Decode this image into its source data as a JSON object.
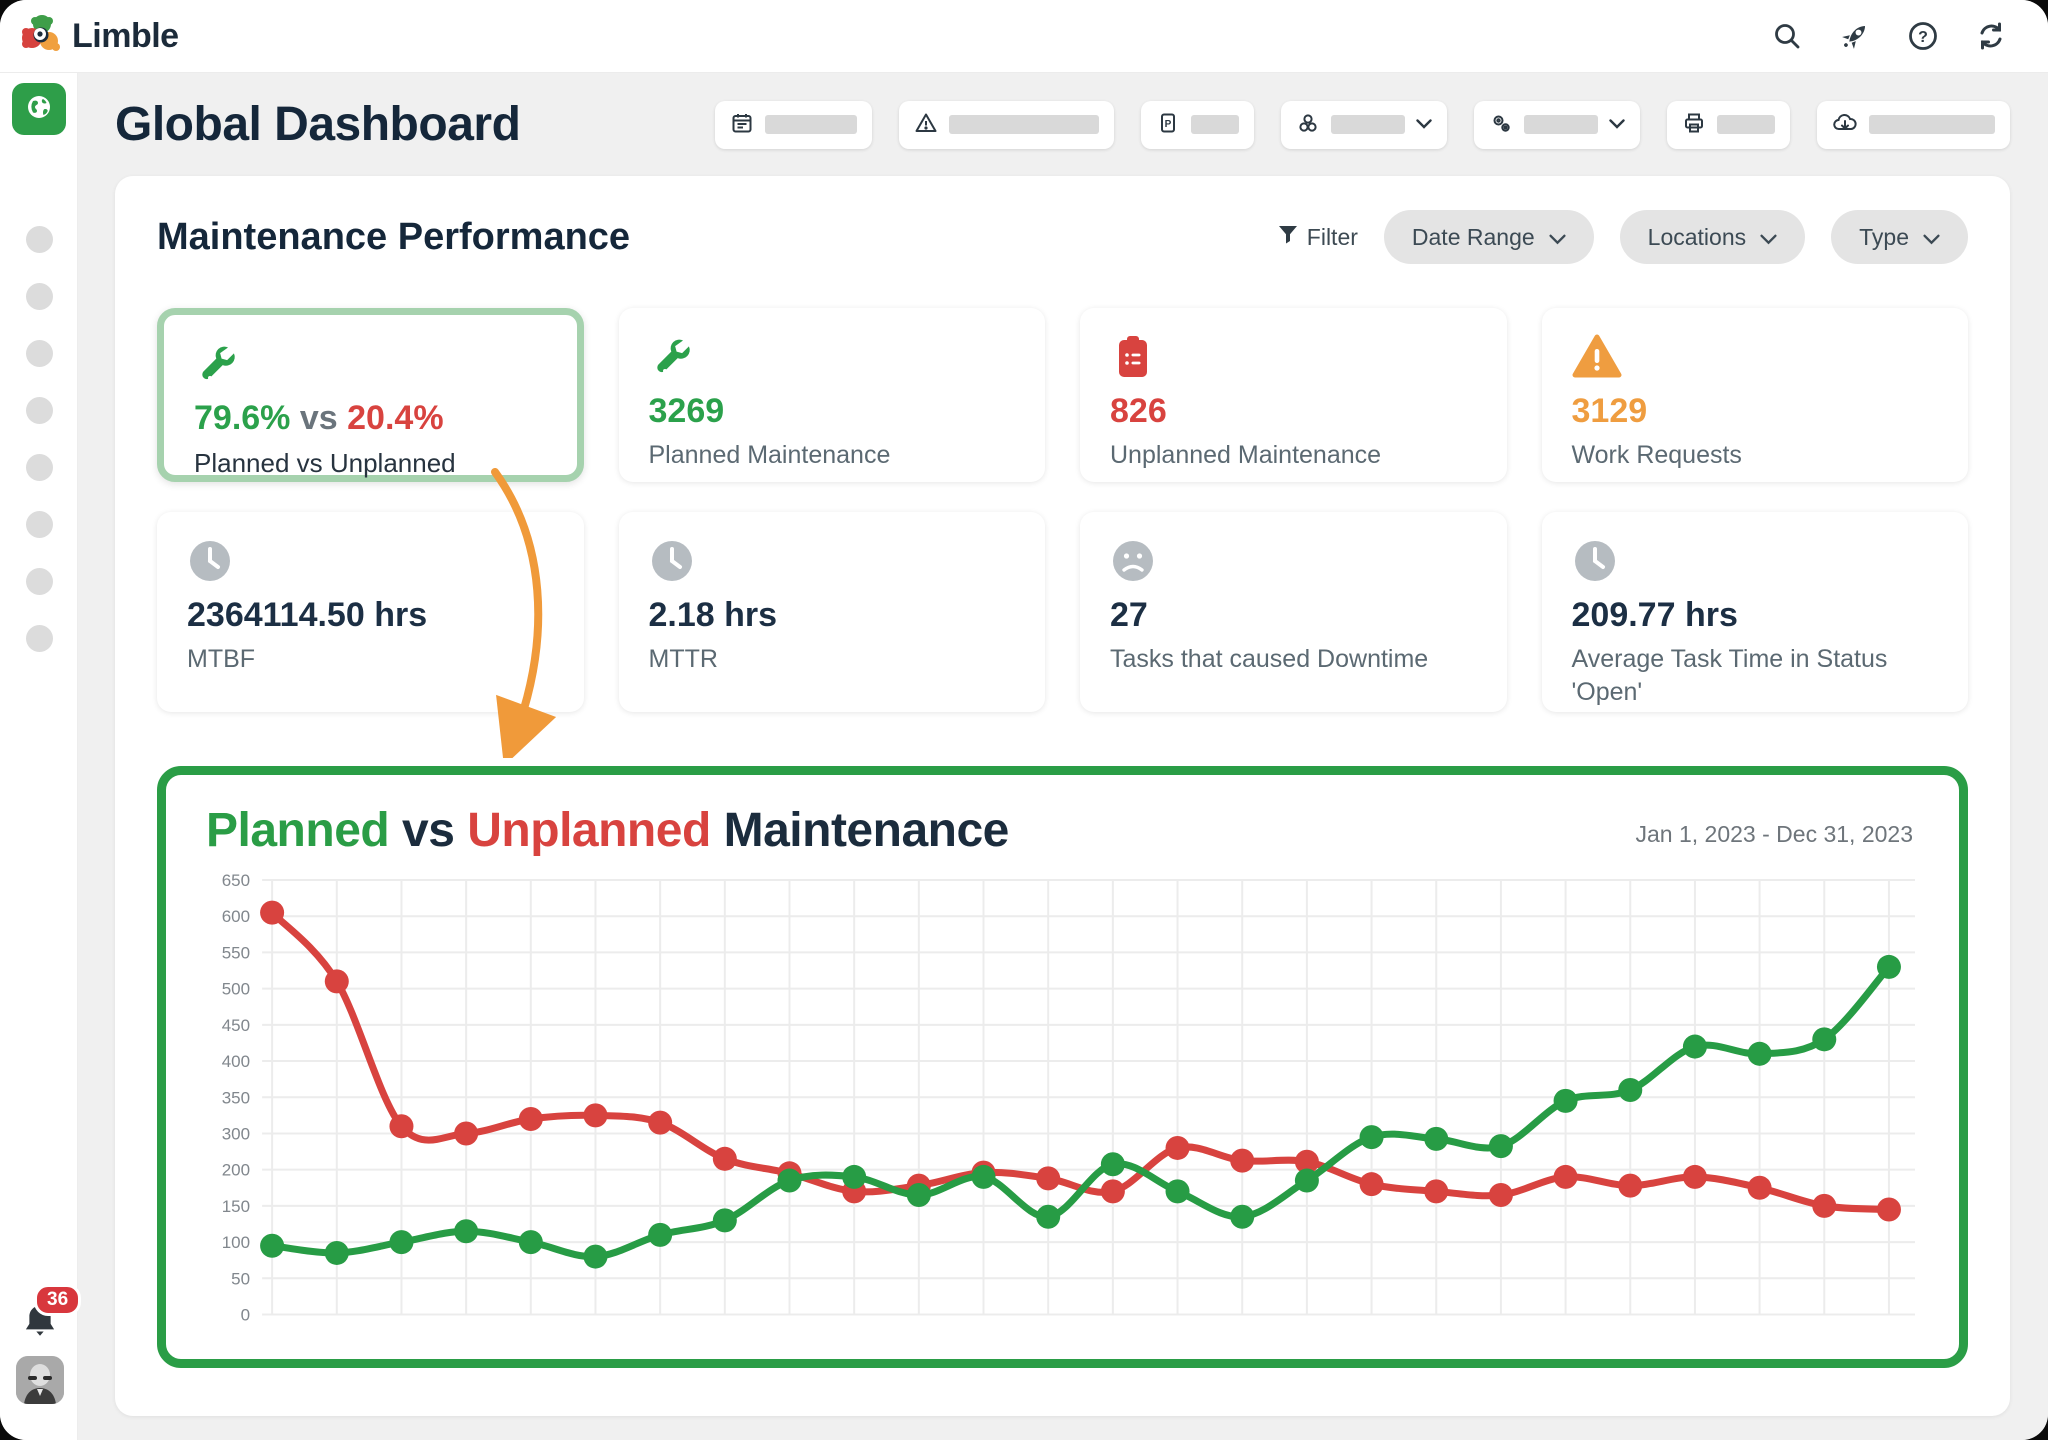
{
  "brand": {
    "name": "Limble"
  },
  "topbar": {
    "icons": [
      "search",
      "rocket",
      "help",
      "refresh"
    ]
  },
  "sidebar": {
    "active_item": "global-dashboard",
    "placeholder_items": 8
  },
  "notifications": {
    "badge": "36"
  },
  "page": {
    "title": "Global Dashboard"
  },
  "toolbar": {
    "buttons": [
      "calendar",
      "warning",
      "report",
      "assets",
      "settings",
      "print",
      "export"
    ]
  },
  "panel": {
    "title": "Maintenance Performance",
    "filter_label": "Filter",
    "dropdowns": [
      {
        "label": "Date Range"
      },
      {
        "label": "Locations"
      },
      {
        "label": "Type"
      }
    ]
  },
  "kpis": {
    "planned_vs_unplanned": {
      "value_planned": "79.6%",
      "vs": "vs",
      "value_unplanned": "20.4%",
      "label": "Planned vs Unplanned"
    },
    "planned_maintenance": {
      "value": "3269",
      "label": "Planned Maintenance"
    },
    "unplanned_maintenance": {
      "value": "826",
      "label": "Unplanned Maintenance"
    },
    "work_requests": {
      "value": "3129",
      "label": "Work Requests"
    },
    "mtbf": {
      "value": "2364114.50 hrs",
      "label": "MTBF"
    },
    "mttr": {
      "value": "2.18 hrs",
      "label": "MTTR"
    },
    "downtime_tasks": {
      "value": "27",
      "label": "Tasks that caused Downtime"
    },
    "avg_open_time": {
      "value": "209.77 hrs",
      "label": "Average Task Time in Status 'Open'"
    }
  },
  "chart_data": {
    "type": "line",
    "title_parts": {
      "planned": "Planned",
      "vs": " vs ",
      "unplanned": "Unplanned",
      "maintenance": " Maintenance"
    },
    "date_range": "Jan 1, 2023 - Dec 31, 2023",
    "y_tick_labels": [
      650,
      600,
      550,
      500,
      450,
      400,
      350,
      300,
      200,
      150,
      100,
      50,
      0
    ],
    "x_points": 26,
    "x_axis_labels_visible": false,
    "grid": true,
    "legend": "none",
    "series": [
      {
        "name": "Unplanned",
        "color": "#d8433f",
        "values": [
          605,
          510,
          310,
          300,
          320,
          325,
          315,
          230,
          195,
          170,
          178,
          196,
          188,
          170,
          260,
          225,
          222,
          180,
          170,
          165,
          190,
          178,
          190,
          175,
          150,
          145
        ]
      },
      {
        "name": "Planned",
        "color": "#279c45",
        "values": [
          95,
          85,
          100,
          115,
          100,
          80,
          110,
          130,
          185,
          190,
          165,
          190,
          135,
          215,
          170,
          135,
          185,
          290,
          285,
          265,
          345,
          360,
          420,
          410,
          430,
          530
        ]
      }
    ]
  },
  "colors": {
    "brand_green": "#2e9e49",
    "green": "#279c45",
    "red": "#d8433f",
    "orange": "#ef9d40",
    "navy": "#15273a",
    "selected_border": "#a6d2ae",
    "arrow_orange": "#f09a3a"
  }
}
